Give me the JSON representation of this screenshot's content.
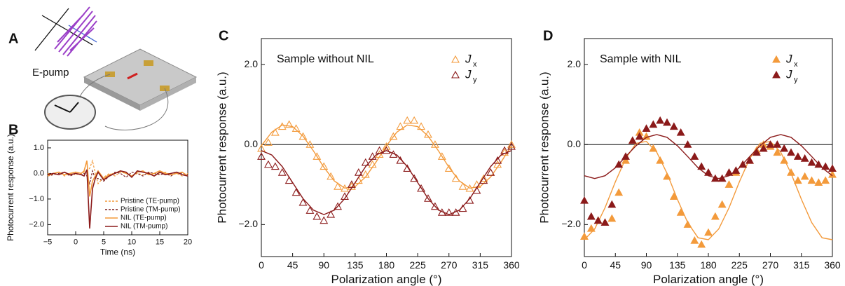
{
  "illustration": {
    "label": "A",
    "text": "E-pump"
  },
  "chart_data": [
    {
      "type": "line",
      "label": "B",
      "x_label": "Time (ns)",
      "y_label": "Photocurrent response (a.u.)",
      "xlim": [
        -5,
        20
      ],
      "xticks": [
        {
          "value": -5,
          "label": "−5"
        },
        0,
        5,
        10,
        15,
        20
      ],
      "ylim": [
        -2.4,
        1.3
      ],
      "yticks": [
        {
          "value": 1,
          "label": "1.0"
        },
        {
          "value": 0,
          "label": "0.0"
        },
        {
          "value": -1,
          "label": "−1.0"
        },
        {
          "value": -2,
          "label": "−2.0"
        }
      ],
      "legend": "lower right",
      "x": [
        -5,
        -4,
        -3,
        -2,
        -1,
        0,
        1,
        1.5,
        2,
        2.5,
        3,
        3.5,
        4,
        5,
        6,
        7,
        8,
        9,
        10,
        11,
        12,
        13,
        14,
        15,
        16,
        17,
        18,
        19,
        20
      ],
      "series": [
        {
          "name": "Pristine (TE-pump)",
          "color": "#f39a3b",
          "dashed": true,
          "values": [
            0,
            -0.05,
            0.05,
            -0.1,
            0,
            -0.05,
            0,
            0.05,
            0.1,
            0.2,
            0.5,
            0,
            -0.4,
            -0.15,
            0,
            -0.1,
            0.05,
            0,
            -0.1,
            0,
            -0.05,
            0.05,
            -0.1,
            0,
            0.05,
            -0.05,
            0,
            -0.1,
            0
          ]
        },
        {
          "name": "Pristine (TM-pump)",
          "color": "#7a1f1f",
          "dashed": true,
          "values": [
            -0.1,
            -0.05,
            0,
            0.05,
            -0.1,
            0,
            -0.05,
            0,
            -0.1,
            -0.4,
            0.1,
            -0.2,
            -0.2,
            -0.3,
            -0.1,
            0.05,
            0,
            -0.15,
            0.05,
            0,
            -0.1,
            0.05,
            0,
            -0.05,
            0,
            -0.1,
            0.05,
            0,
            -0.05
          ]
        },
        {
          "name": "NIL (TE-pump)",
          "color": "#f39a3b",
          "dashed": false,
          "values": [
            -0.1,
            0,
            0.05,
            -0.05,
            0,
            0.05,
            0,
            0.1,
            0.5,
            -0.9,
            -0.3,
            -0.1,
            0.1,
            -0.2,
            -0.05,
            0,
            0.1,
            0,
            -0.1,
            0.05,
            0.1,
            -0.05,
            0,
            0.1,
            0,
            -0.05,
            0,
            0.05,
            -0.1
          ]
        },
        {
          "name": "NIL (TM-pump)",
          "color": "#8b1a1a",
          "dashed": false,
          "values": [
            -0.05,
            0,
            -0.05,
            0.05,
            -0.05,
            0,
            -0.05,
            -0.1,
            0.15,
            -2.15,
            -0.6,
            -0.2,
            0.05,
            -0.25,
            -0.1,
            0,
            0.1,
            0.05,
            -0.15,
            0.1,
            0.05,
            0,
            -0.1,
            0.05,
            -0.05,
            0,
            0.05,
            -0.05,
            -0.1
          ]
        }
      ]
    },
    {
      "type": "scatter",
      "label": "C",
      "annotation": "Sample without NIL",
      "x_label": "Polarization angle (°)",
      "y_label": "Photocurrent response (a.u.)",
      "xlim": [
        0,
        360
      ],
      "xticks": [
        0,
        45,
        90,
        135,
        180,
        225,
        270,
        315,
        360
      ],
      "ylim": [
        -2.8,
        2.65
      ],
      "yticks": [
        {
          "value": -2,
          "label": "−2.0"
        },
        {
          "value": 0,
          "label": "0.0"
        },
        {
          "value": 2,
          "label": "2.0"
        }
      ],
      "zero_line": true,
      "legend": "upper right",
      "marker": "open-triangle",
      "x": [
        0,
        10,
        20,
        30,
        40,
        50,
        60,
        70,
        80,
        90,
        100,
        110,
        120,
        130,
        140,
        150,
        160,
        170,
        180,
        190,
        200,
        210,
        220,
        230,
        240,
        250,
        260,
        270,
        280,
        290,
        300,
        310,
        320,
        330,
        340,
        350,
        360
      ],
      "fit_x": [
        0,
        15,
        30,
        45,
        60,
        75,
        90,
        105,
        120,
        135,
        150,
        165,
        180,
        195,
        210,
        225,
        240,
        255,
        270,
        285,
        300,
        315,
        330,
        345,
        360
      ],
      "series": [
        {
          "name": "J",
          "subscript": "x",
          "color": "#f39a3b",
          "values": [
            -0.1,
            0.05,
            0.3,
            0.45,
            0.5,
            0.4,
            0.2,
            0,
            -0.3,
            -0.55,
            -0.8,
            -1.05,
            -1.1,
            -1.05,
            -0.9,
            -0.75,
            -0.5,
            -0.25,
            -0.05,
            0.2,
            0.45,
            0.6,
            0.6,
            0.45,
            0.25,
            0,
            -0.3,
            -0.6,
            -0.85,
            -1.05,
            -1.1,
            -1,
            -0.85,
            -0.7,
            -0.5,
            -0.2,
            0
          ],
          "fit": [
            -0.03,
            0.31,
            0.49,
            0.45,
            0.21,
            -0.16,
            -0.57,
            -0.91,
            -1.09,
            -1.05,
            -0.81,
            -0.44,
            -0.03,
            0.31,
            0.49,
            0.45,
            0.21,
            -0.16,
            -0.57,
            -0.91,
            -1.09,
            -1.05,
            -0.81,
            -0.44,
            -0.03
          ]
        },
        {
          "name": "J",
          "subscript": "y",
          "color": "#8b1a1a",
          "values": [
            -0.3,
            -0.5,
            -0.55,
            -0.7,
            -0.9,
            -1.2,
            -1.45,
            -1.65,
            -1.8,
            -1.9,
            -1.75,
            -1.55,
            -1.3,
            -1,
            -0.7,
            -0.45,
            -0.3,
            -0.15,
            -0.15,
            -0.25,
            -0.4,
            -0.6,
            -0.85,
            -1.1,
            -1.35,
            -1.55,
            -1.7,
            -1.7,
            -1.7,
            -1.6,
            -1.4,
            -1.15,
            -0.9,
            -0.7,
            -0.4,
            -0.15,
            -0.05
          ],
          "fit": [
            -0.15,
            -0.26,
            -0.55,
            -0.95,
            -1.35,
            -1.64,
            -1.75,
            -1.64,
            -1.35,
            -0.95,
            -0.55,
            -0.26,
            -0.15,
            -0.26,
            -0.55,
            -0.95,
            -1.35,
            -1.64,
            -1.75,
            -1.64,
            -1.35,
            -0.95,
            -0.55,
            -0.26,
            -0.15
          ]
        }
      ]
    },
    {
      "type": "scatter",
      "label": "D",
      "annotation": "Sample with NIL",
      "x_label": "Polarization angle (°)",
      "y_label": "Photocurrent response (a.u.)",
      "xlim": [
        0,
        360
      ],
      "xticks": [
        0,
        45,
        90,
        135,
        180,
        225,
        270,
        315,
        360
      ],
      "ylim": [
        -2.8,
        2.65
      ],
      "yticks": [
        {
          "value": -2,
          "label": "−2.0"
        },
        {
          "value": 0,
          "label": "0.0"
        },
        {
          "value": 2,
          "label": "2.0"
        }
      ],
      "zero_line": true,
      "legend": "upper right",
      "marker": "filled-triangle",
      "x": [
        0,
        10,
        20,
        30,
        40,
        50,
        60,
        70,
        80,
        90,
        100,
        110,
        120,
        130,
        140,
        150,
        160,
        170,
        180,
        190,
        200,
        210,
        220,
        230,
        240,
        250,
        260,
        270,
        280,
        290,
        300,
        310,
        320,
        330,
        340,
        350,
        360
      ],
      "fit_x": [
        0,
        15,
        30,
        45,
        60,
        75,
        90,
        105,
        120,
        135,
        150,
        165,
        180,
        195,
        210,
        225,
        240,
        255,
        270,
        285,
        300,
        315,
        330,
        345,
        360
      ],
      "series": [
        {
          "name": "J",
          "subscript": "x",
          "color": "#f39a3b",
          "values": [
            -2.3,
            -2.1,
            -1.9,
            -1.95,
            -1.85,
            -1.2,
            -0.4,
            0.1,
            0.3,
            0.2,
            -0.1,
            -0.4,
            -0.8,
            -1.3,
            -1.7,
            -2,
            -2.4,
            -2.5,
            -2.2,
            -1.8,
            -1.5,
            -1,
            -0.7,
            -0.5,
            -0.4,
            -0.15,
            0,
            -0.05,
            -0.2,
            -0.4,
            -0.7,
            -0.9,
            -0.8,
            -0.9,
            -0.95,
            -0.9,
            -0.75
          ],
          "fit": [
            -2.38,
            -2.11,
            -1.58,
            -0.93,
            -0.35,
            0.03,
            0.08,
            -0.19,
            -0.72,
            -1.37,
            -1.95,
            -2.33,
            -2.38,
            -2.11,
            -1.58,
            -0.93,
            -0.35,
            0.03,
            0.08,
            -0.19,
            -0.72,
            -1.37,
            -1.95,
            -2.33,
            -2.38
          ]
        },
        {
          "name": "J",
          "subscript": "y",
          "color": "#8b1a1a",
          "values": [
            -1.4,
            -1.8,
            -1.9,
            -1.95,
            -1.5,
            -0.5,
            -0.3,
            0.1,
            0.2,
            0.4,
            0.5,
            0.6,
            0.55,
            0.45,
            0.3,
            0,
            -0.3,
            -0.55,
            -0.7,
            -0.85,
            -0.85,
            -0.7,
            -0.65,
            -0.5,
            -0.4,
            -0.2,
            -0.1,
            0,
            0,
            -0.1,
            -0.2,
            -0.3,
            -0.35,
            -0.45,
            -0.5,
            -0.55,
            -0.6
          ],
          "fit": [
            -0.78,
            -0.85,
            -0.78,
            -0.58,
            -0.3,
            -0.03,
            0.18,
            0.25,
            0.18,
            -0.03,
            -0.3,
            -0.58,
            -0.78,
            -0.85,
            -0.78,
            -0.58,
            -0.3,
            -0.03,
            0.18,
            0.25,
            0.18,
            -0.03,
            -0.3,
            -0.58,
            -0.78
          ]
        }
      ]
    }
  ]
}
